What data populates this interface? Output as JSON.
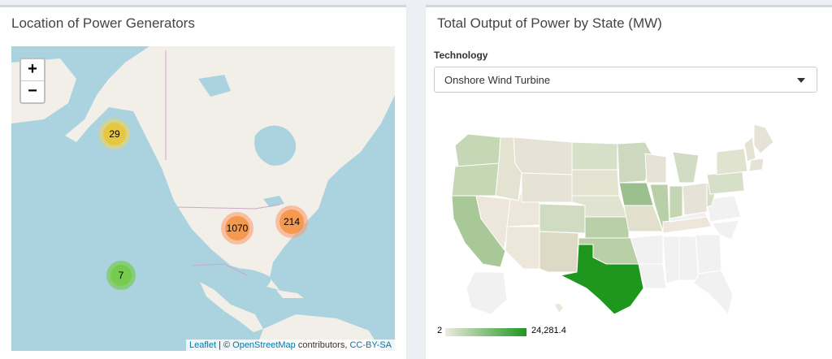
{
  "left_panel": {
    "title": "Location of Power Generators",
    "zoom_in": "+",
    "zoom_out": "−",
    "clusters": [
      {
        "count": "29",
        "color": "#f1d357"
      },
      {
        "count": "1070",
        "color": "#fd9c73"
      },
      {
        "count": "214",
        "color": "#fd9c73"
      },
      {
        "count": "7",
        "color": "#6ecc39"
      }
    ],
    "attribution": {
      "leaflet": "Leaflet",
      "sep": " | © ",
      "osm": "OpenStreetMap",
      "contributors": " contributors, ",
      "license": "CC-BY-SA"
    }
  },
  "right_panel": {
    "title": "Total Output of Power by State (MW)",
    "technology_label": "Technology",
    "technology_value": "Onshore Wind Turbine",
    "legend": {
      "min": "2",
      "max": "24,281.4",
      "low_color": "#ecebdf",
      "high_color": "#1f961e"
    }
  }
}
